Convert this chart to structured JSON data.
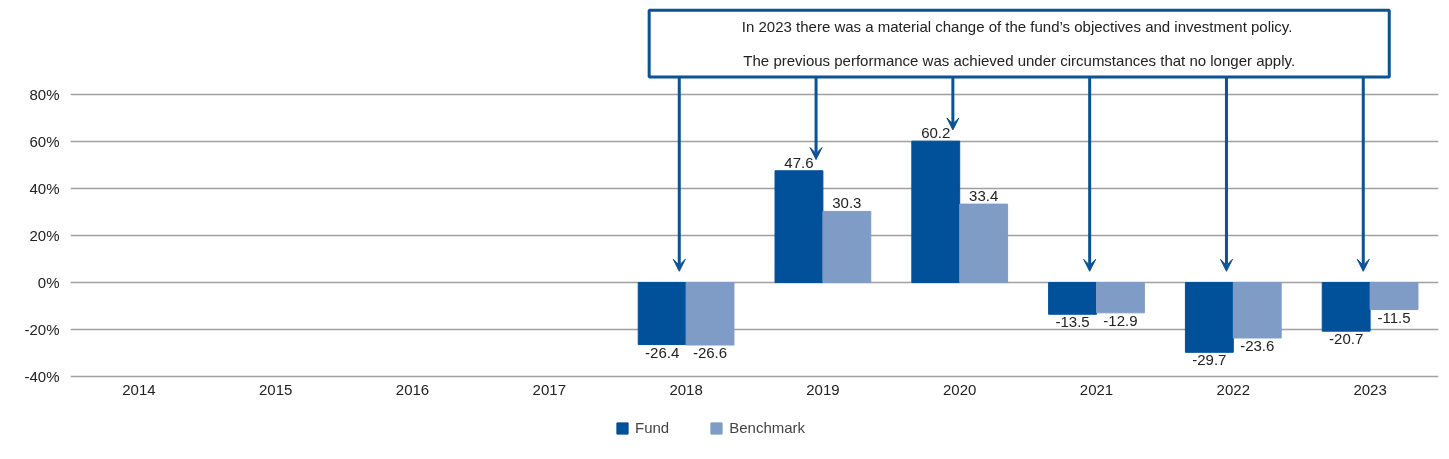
{
  "chart_data": {
    "type": "bar",
    "categories": [
      "2014",
      "2015",
      "2016",
      "2017",
      "2018",
      "2019",
      "2020",
      "2021",
      "2022",
      "2023"
    ],
    "series": [
      {
        "name": "Fund",
        "color": "#00509a",
        "values": [
          null,
          null,
          null,
          null,
          -26.4,
          47.6,
          60.2,
          -13.5,
          -29.7,
          -20.7
        ]
      },
      {
        "name": "Benchmark",
        "color": "#7f9cc7",
        "values": [
          null,
          null,
          null,
          null,
          -26.6,
          30.3,
          33.4,
          -12.9,
          -23.6,
          -11.5
        ]
      }
    ],
    "ylim": [
      -40,
      80
    ],
    "yticks": [
      {
        "value": -40,
        "label": "-40%"
      },
      {
        "value": -20,
        "label": "-20%"
      },
      {
        "value": 0,
        "label": "0%"
      },
      {
        "value": 20,
        "label": "20%"
      },
      {
        "value": 40,
        "label": "40%"
      },
      {
        "value": 60,
        "label": "60%"
      },
      {
        "value": 80,
        "label": "80%"
      }
    ],
    "grid": "y",
    "data_labels": true,
    "legend": "bottom",
    "annotations": [
      "In 2023  there was a material change of the fund’s objectives and investment policy.",
      "The previous performance was achieved under circumstances that no longer apply."
    ]
  }
}
